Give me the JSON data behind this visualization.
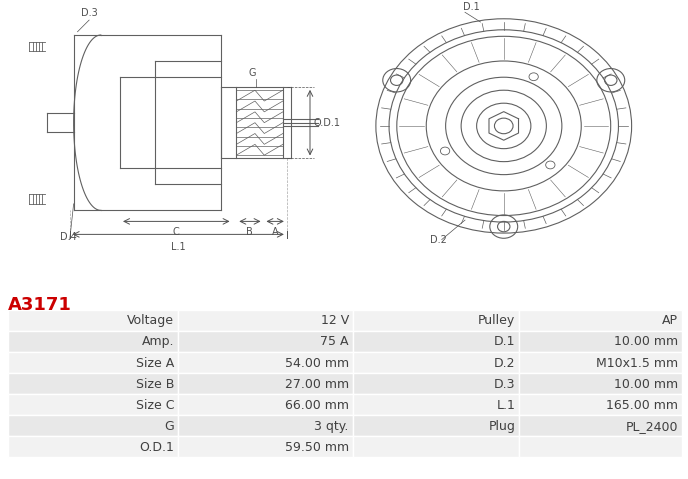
{
  "title": "A3171",
  "title_color": "#cc0000",
  "table_headers_left": [
    "Voltage",
    "Amp.",
    "Size A",
    "Size B",
    "Size C",
    "G",
    "O.D.1"
  ],
  "table_values_left": [
    "12 V",
    "75 A",
    "54.00 mm",
    "27.00 mm",
    "66.00 mm",
    "3 qty.",
    "59.50 mm"
  ],
  "table_headers_right": [
    "Pulley",
    "D.1",
    "D.2",
    "D.3",
    "L.1",
    "Plug",
    ""
  ],
  "table_values_right": [
    "AP",
    "10.00 mm",
    "M10x1.5 mm",
    "10.00 mm",
    "165.00 mm",
    "PL_2400",
    ""
  ],
  "bg_color": "#ffffff",
  "table_header_bg": "#d9d9d9",
  "table_row_bg1": "#f2f2f2",
  "table_row_bg2": "#e8e8e8",
  "table_border_color": "#ffffff",
  "label_color": "#404040",
  "font_size_title": 13,
  "font_size_table": 9
}
